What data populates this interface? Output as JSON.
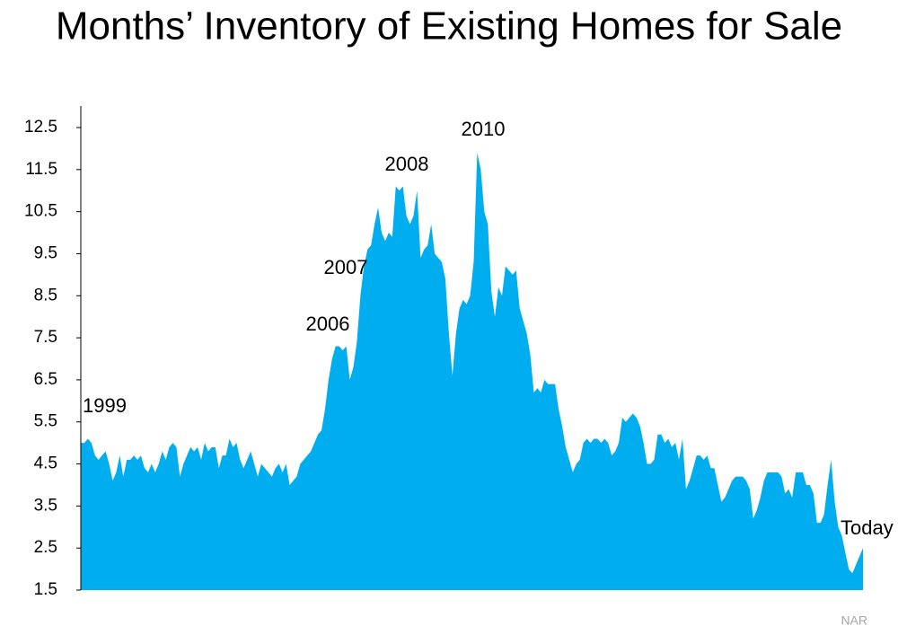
{
  "chart_data": {
    "type": "area",
    "title": "Months’ Inventory of Existing Homes for Sale",
    "color": "#00adef",
    "ylim": [
      1.5,
      12.5
    ],
    "yticks": [
      1.5,
      2.5,
      3.5,
      4.5,
      5.5,
      6.5,
      7.5,
      8.5,
      9.5,
      10.5,
      11.5,
      12.5
    ],
    "annotations": [
      "1999",
      "2006",
      "2007",
      "2008",
      "2010",
      "Today"
    ],
    "source": "NAR",
    "values": [
      5.0,
      5.0,
      5.1,
      5.0,
      4.7,
      4.6,
      4.7,
      4.8,
      4.5,
      4.1,
      4.3,
      4.7,
      4.2,
      4.6,
      4.6,
      4.7,
      4.6,
      4.7,
      4.4,
      4.3,
      4.5,
      4.3,
      4.5,
      4.8,
      4.6,
      4.9,
      5.0,
      4.9,
      4.2,
      4.5,
      4.7,
      4.9,
      4.8,
      4.9,
      4.6,
      5.0,
      4.8,
      4.9,
      4.9,
      4.4,
      4.7,
      4.7,
      5.1,
      4.9,
      5.0,
      4.6,
      4.4,
      4.6,
      4.8,
      4.5,
      4.2,
      4.5,
      4.4,
      4.3,
      4.2,
      4.4,
      4.5,
      4.3,
      4.5,
      4.0,
      4.1,
      4.2,
      4.5,
      4.6,
      4.7,
      4.8,
      5.0,
      5.2,
      5.3,
      5.8,
      6.5,
      7.0,
      7.3,
      7.3,
      7.2,
      7.3,
      6.5,
      6.8,
      7.4,
      8.5,
      9.2,
      9.6,
      9.7,
      10.2,
      10.6,
      10.0,
      9.8,
      10.0,
      9.9,
      11.1,
      11.0,
      11.1,
      10.4,
      10.2,
      10.4,
      11.0,
      9.4,
      9.6,
      9.7,
      10.2,
      9.5,
      9.4,
      9.3,
      8.9,
      7.6,
      6.6,
      7.6,
      8.2,
      8.4,
      8.3,
      8.5,
      9.3,
      11.9,
      11.5,
      10.5,
      10.2,
      8.6,
      8.0,
      8.7,
      8.5,
      9.2,
      9.1,
      9.0,
      9.1,
      8.2,
      7.9,
      7.6,
      7.1,
      6.2,
      6.3,
      6.2,
      6.5,
      6.4,
      6.4,
      6.4,
      5.8,
      5.4,
      4.9,
      4.6,
      4.3,
      4.5,
      4.6,
      5.0,
      5.1,
      5.0,
      5.1,
      5.1,
      5.0,
      5.1,
      5.0,
      4.7,
      4.8,
      5.0,
      5.6,
      5.5,
      5.6,
      5.7,
      5.6,
      5.4,
      5.0,
      4.5,
      4.5,
      4.6,
      5.2,
      5.2,
      5.0,
      5.1,
      4.9,
      5.0,
      4.6,
      5.1,
      3.9,
      4.1,
      4.4,
      4.7,
      4.7,
      4.6,
      4.7,
      4.4,
      4.4,
      4.0,
      3.6,
      3.7,
      3.9,
      4.1,
      4.2,
      4.2,
      4.2,
      4.1,
      3.9,
      3.2,
      3.4,
      3.7,
      4.1,
      4.3,
      4.3,
      4.3,
      4.3,
      4.2,
      3.8,
      3.9,
      3.7,
      4.3,
      4.3,
      4.3,
      4.0,
      4.0,
      3.8,
      3.1,
      3.1,
      3.3,
      4.0,
      4.6,
      3.6,
      3.0,
      2.8,
      2.4,
      2.0,
      1.9,
      2.1,
      2.3,
      2.5
    ]
  }
}
